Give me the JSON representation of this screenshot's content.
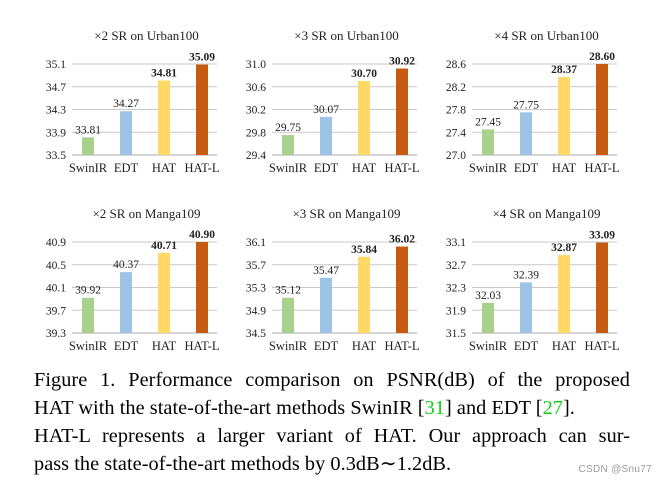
{
  "chart_data": [
    {
      "type": "bar",
      "title": "×2 SR on Urban100",
      "categories": [
        "SwinIR",
        "EDT",
        "HAT",
        "HAT-L"
      ],
      "values": [
        33.81,
        34.27,
        34.81,
        35.09
      ],
      "value_labels": [
        "33.81",
        "34.27",
        "34.81",
        "35.09"
      ],
      "bold_labels": [
        false,
        false,
        true,
        true
      ],
      "yticks": [
        "33.5",
        "33.9",
        "34.3",
        "34.7",
        "35.1"
      ],
      "ylim": [
        33.5,
        35.1
      ],
      "xlabel": "",
      "ylabel": "",
      "grid": true
    },
    {
      "type": "bar",
      "title": "×3 SR on Urban100",
      "categories": [
        "SwinIR",
        "EDT",
        "HAT",
        "HAT-L"
      ],
      "values": [
        29.75,
        30.07,
        30.7,
        30.92
      ],
      "value_labels": [
        "29.75",
        "30.07",
        "30.70",
        "30.92"
      ],
      "bold_labels": [
        false,
        false,
        true,
        true
      ],
      "yticks": [
        "29.4",
        "29.8",
        "30.2",
        "30.6",
        "31.0"
      ],
      "ylim": [
        29.4,
        31.0
      ],
      "xlabel": "",
      "ylabel": "",
      "grid": true
    },
    {
      "type": "bar",
      "title": "×4 SR on Urban100",
      "categories": [
        "SwinIR",
        "EDT",
        "HAT",
        "HAT-L"
      ],
      "values": [
        27.45,
        27.75,
        28.37,
        28.6
      ],
      "value_labels": [
        "27.45",
        "27.75",
        "28.37",
        "28.60"
      ],
      "bold_labels": [
        false,
        false,
        true,
        true
      ],
      "yticks": [
        "27.0",
        "27.4",
        "27.8",
        "28.2",
        "28.6"
      ],
      "ylim": [
        27.0,
        28.6
      ],
      "xlabel": "",
      "ylabel": "",
      "grid": true
    },
    {
      "type": "bar",
      "title": "×2 SR on Manga109",
      "categories": [
        "SwinIR",
        "EDT",
        "HAT",
        "HAT-L"
      ],
      "values": [
        39.92,
        40.37,
        40.71,
        40.9
      ],
      "value_labels": [
        "39.92",
        "40.37",
        "40.71",
        "40.90"
      ],
      "bold_labels": [
        false,
        false,
        true,
        true
      ],
      "yticks": [
        "39.3",
        "39.7",
        "40.1",
        "40.5",
        "40.9"
      ],
      "ylim": [
        39.3,
        40.9
      ],
      "xlabel": "",
      "ylabel": "",
      "grid": true
    },
    {
      "type": "bar",
      "title": "×3 SR on Manga109",
      "categories": [
        "SwinIR",
        "EDT",
        "HAT",
        "HAT-L"
      ],
      "values": [
        35.12,
        35.47,
        35.84,
        36.02
      ],
      "value_labels": [
        "35.12",
        "35.47",
        "35.84",
        "36.02"
      ],
      "bold_labels": [
        false,
        false,
        true,
        true
      ],
      "yticks": [
        "34.5",
        "34.9",
        "35.3",
        "35.7",
        "36.1"
      ],
      "ylim": [
        34.5,
        36.1
      ],
      "xlabel": "",
      "ylabel": "",
      "grid": true
    },
    {
      "type": "bar",
      "title": "×4 SR on Manga109",
      "categories": [
        "SwinIR",
        "EDT",
        "HAT",
        "HAT-L"
      ],
      "values": [
        32.03,
        32.39,
        32.87,
        33.09
      ],
      "value_labels": [
        "32.03",
        "32.39",
        "32.87",
        "33.09"
      ],
      "bold_labels": [
        false,
        false,
        true,
        true
      ],
      "yticks": [
        "31.5",
        "31.9",
        "32.3",
        "32.7",
        "33.1"
      ],
      "ylim": [
        31.5,
        33.1
      ],
      "xlabel": "",
      "ylabel": "",
      "grid": true
    }
  ],
  "colors": {
    "SwinIR": "#a9d18e",
    "EDT": "#9dc3e6",
    "HAT": "#ffd966",
    "HAT-L": "#c55a11",
    "gridline": "#c8c8c8",
    "axis": "#aaaaaa",
    "ref_link": "#14d014"
  },
  "caption": {
    "line1": "Figure 1. Performance comparison on PSNR(dB) of the proposed",
    "line2_a": "HAT with the state-of-the-art methods SwinIR [",
    "line2_ref1": "31",
    "line2_b": "] and EDT [",
    "line2_ref2": "27",
    "line2_c": "].",
    "line3": "HAT-L represents a larger variant of HAT. Our approach can sur-",
    "line4": "pass the state-of-the-art methods by 0.3dB∼1.2dB."
  },
  "watermark": "CSDN @Snu77"
}
